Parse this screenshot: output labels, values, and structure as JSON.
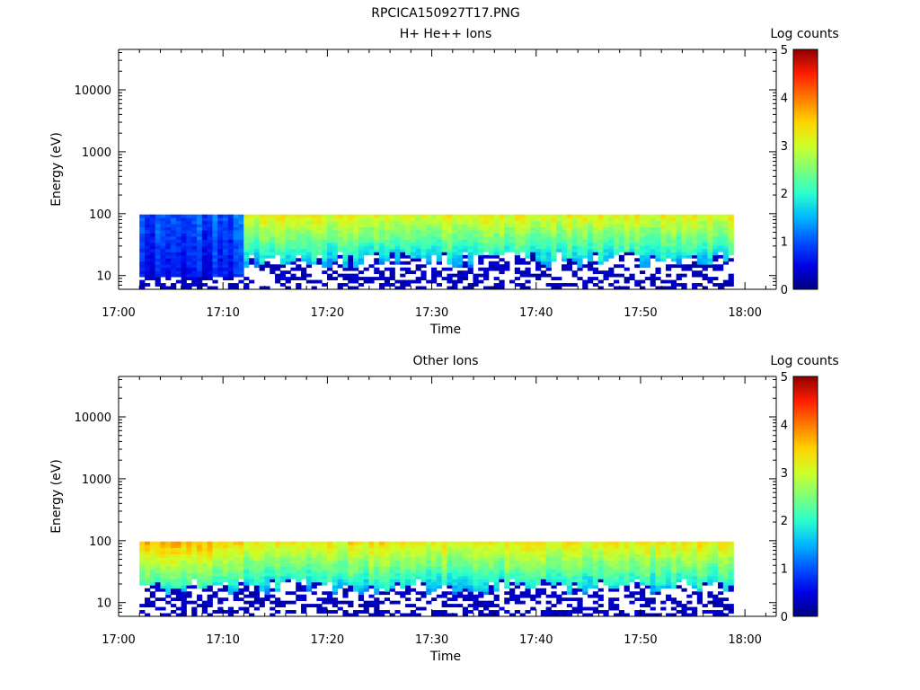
{
  "figure": {
    "title": "RPCICA150927T17.PNG"
  },
  "colormap": [
    "#00007f",
    "#0000e6",
    "#0050ff",
    "#00b6ff",
    "#29ffce",
    "#7dff7a",
    "#ceff29",
    "#ffd400",
    "#ff7a00",
    "#ff1e00",
    "#8f0000"
  ],
  "chart_data": [
    {
      "type": "heatmap",
      "title": "H+ He++ Ions",
      "xlabel": "Time",
      "ylabel": "Energy (eV)",
      "xlim": [
        "17:00",
        "18:03"
      ],
      "ylim": [
        6,
        45000
      ],
      "ylog": true,
      "xticks": [
        "17:00",
        "17:10",
        "17:20",
        "17:30",
        "17:40",
        "17:50",
        "18:00"
      ],
      "yticks": [
        "10",
        "100",
        "1000",
        "10000"
      ],
      "colorbar": {
        "label": "Log counts",
        "range": [
          0,
          5
        ],
        "ticks": [
          "0",
          "1",
          "2",
          "3",
          "4",
          "5"
        ]
      },
      "data_time_range": [
        "17:02",
        "17:59"
      ],
      "data_energy_range": [
        6,
        97
      ],
      "segments": [
        {
          "start": "17:02",
          "end": "17:12",
          "profile": "low",
          "log_counts_at_top": 1.0,
          "log_counts_at_bottom": 0.5
        },
        {
          "start": "17:12",
          "end": "17:59",
          "profile": "high",
          "log_counts_at_top": 3.2,
          "log_counts_at_bottom": 0.3
        }
      ]
    },
    {
      "type": "heatmap",
      "title": "Other Ions",
      "xlabel": "Time",
      "ylabel": "Energy (eV)",
      "xlim": [
        "17:00",
        "18:03"
      ],
      "ylim": [
        6,
        45000
      ],
      "ylog": true,
      "xticks": [
        "17:00",
        "17:10",
        "17:20",
        "17:30",
        "17:40",
        "17:50",
        "18:00"
      ],
      "yticks": [
        "10",
        "100",
        "1000",
        "10000"
      ],
      "colorbar": {
        "label": "Log counts",
        "range": [
          0,
          5
        ],
        "ticks": [
          "0",
          "1",
          "2",
          "3",
          "4",
          "5"
        ]
      },
      "data_time_range": [
        "17:02",
        "17:59"
      ],
      "data_energy_range": [
        6,
        97
      ],
      "segments": [
        {
          "start": "17:02",
          "end": "17:12",
          "profile": "high",
          "log_counts_at_top": 3.6,
          "log_counts_at_bottom": 0.4
        },
        {
          "start": "17:12",
          "end": "17:59",
          "profile": "high",
          "log_counts_at_top": 3.3,
          "log_counts_at_bottom": 0.3
        }
      ]
    }
  ]
}
